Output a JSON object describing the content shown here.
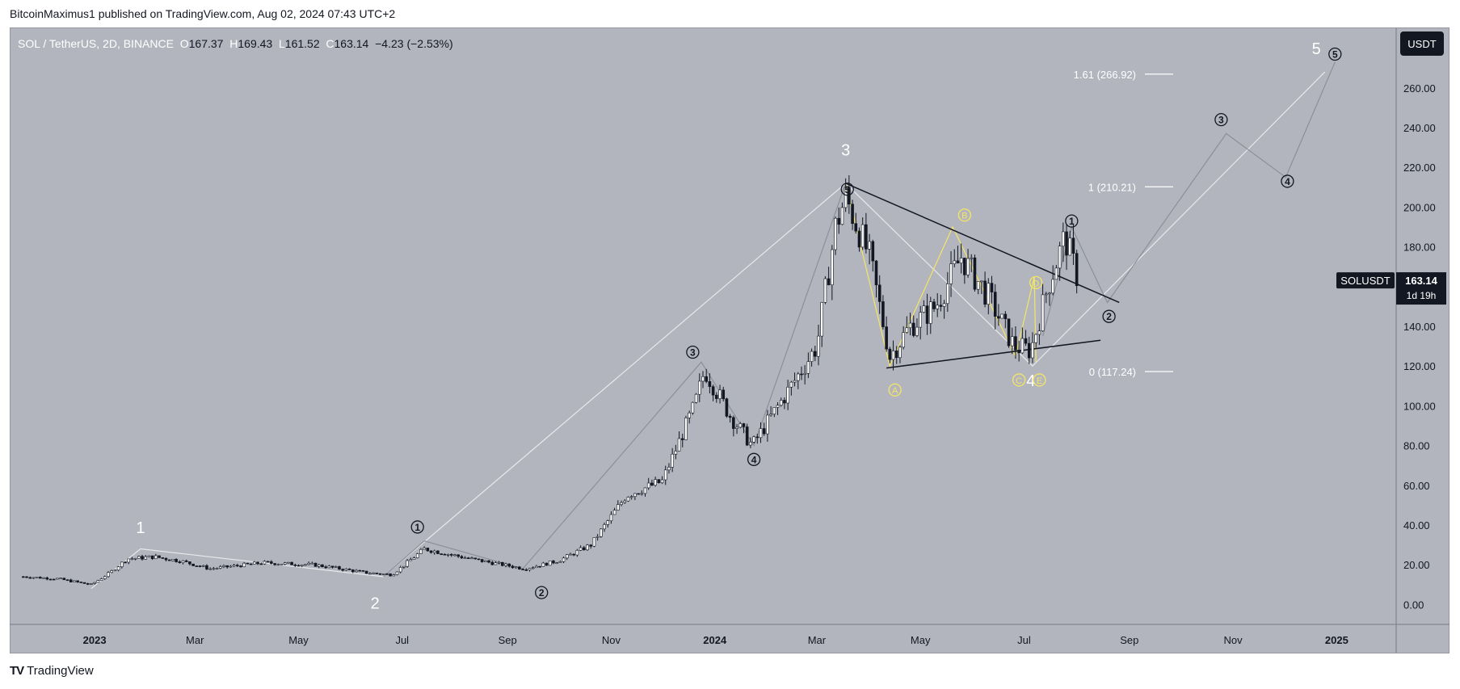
{
  "header": {
    "published": "BitcoinMaximus1 published on TradingView.com, Aug 02, 2024 07:43 UTC+2"
  },
  "symbol": {
    "title": "SOL / TetherUS, 2D, BINANCE",
    "o_label": "O",
    "o": "167.37",
    "h_label": "H",
    "h": "169.43",
    "l_label": "L",
    "l": "161.52",
    "c_label": "C",
    "c": "163.14",
    "change": "−4.23 (−2.53%)"
  },
  "currency_button": "USDT",
  "footer": {
    "brand": "TradingView",
    "logo": "TV"
  },
  "colors": {
    "background": "#b2b5be",
    "candle": "#131722",
    "wave_white": "#ffffff",
    "wave_yellow": "#f5e663",
    "wave_grey": "#8c8f99"
  },
  "chart_data": {
    "type": "line",
    "ylim": [
      -10,
      290
    ],
    "y_ticks": [
      "0.00",
      "20.00",
      "40.00",
      "60.00",
      "80.00",
      "100.00",
      "120.00",
      "140.00",
      "160.00",
      "180.00",
      "200.00",
      "220.00",
      "240.00",
      "260.00"
    ],
    "x_ticks": [
      "2023",
      "Mar",
      "May",
      "Jul",
      "Sep",
      "Nov",
      "2024",
      "Mar",
      "May",
      "Jul",
      "Sep",
      "Nov",
      "2025"
    ],
    "price_tag": {
      "symbol": "SOLUSDT",
      "price": "163.14",
      "countdown": "1d 19h",
      "value": 163.14
    },
    "fib_levels": [
      {
        "label": "1.61 (266.92)",
        "value": 266.92
      },
      {
        "label": "1 (210.21)",
        "value": 210.21
      },
      {
        "label": "0 (117.24)",
        "value": 117.24
      }
    ],
    "price_path": [
      {
        "d": "2022-11-20",
        "v": 14
      },
      {
        "d": "2022-12-10",
        "v": 13
      },
      {
        "d": "2022-12-30",
        "v": 10
      },
      {
        "d": "2023-01-10",
        "v": 16
      },
      {
        "d": "2023-01-20",
        "v": 23
      },
      {
        "d": "2023-02-05",
        "v": 24
      },
      {
        "d": "2023-02-20",
        "v": 22
      },
      {
        "d": "2023-03-10",
        "v": 18
      },
      {
        "d": "2023-04-10",
        "v": 21
      },
      {
        "d": "2023-05-10",
        "v": 20
      },
      {
        "d": "2023-06-10",
        "v": 16
      },
      {
        "d": "2023-06-25",
        "v": 15
      },
      {
        "d": "2023-07-14",
        "v": 28
      },
      {
        "d": "2023-08-10",
        "v": 23
      },
      {
        "d": "2023-09-11",
        "v": 18
      },
      {
        "d": "2023-10-01",
        "v": 22
      },
      {
        "d": "2023-10-20",
        "v": 30
      },
      {
        "d": "2023-11-10",
        "v": 55
      },
      {
        "d": "2023-12-01",
        "v": 62
      },
      {
        "d": "2023-12-20",
        "v": 100
      },
      {
        "d": "2023-12-26",
        "v": 118
      },
      {
        "d": "2024-01-10",
        "v": 95
      },
      {
        "d": "2024-01-23",
        "v": 80
      },
      {
        "d": "2024-02-15",
        "v": 110
      },
      {
        "d": "2024-03-01",
        "v": 130
      },
      {
        "d": "2024-03-12",
        "v": 190
      },
      {
        "d": "2024-03-18",
        "v": 205
      },
      {
        "d": "2024-04-01",
        "v": 175
      },
      {
        "d": "2024-04-13",
        "v": 125
      },
      {
        "d": "2024-04-25",
        "v": 140
      },
      {
        "d": "2024-05-10",
        "v": 150
      },
      {
        "d": "2024-05-25",
        "v": 175
      },
      {
        "d": "2024-06-10",
        "v": 155
      },
      {
        "d": "2024-06-25",
        "v": 130
      },
      {
        "d": "2024-07-05",
        "v": 128
      },
      {
        "d": "2024-07-15",
        "v": 160
      },
      {
        "d": "2024-07-25",
        "v": 185
      },
      {
        "d": "2024-08-02",
        "v": 163
      }
    ],
    "wave_labels": [
      {
        "text": "1",
        "d": "2023-01-28",
        "v": 36,
        "style": "white"
      },
      {
        "text": "2",
        "d": "2023-06-15",
        "v": -2,
        "style": "white"
      },
      {
        "text": "3",
        "d": "2024-03-18",
        "v": 226,
        "style": "white"
      },
      {
        "text": "4",
        "d": "2024-07-05",
        "v": 110,
        "style": "white"
      },
      {
        "text": "5",
        "d": "2024-12-20",
        "v": 277,
        "style": "white"
      },
      {
        "text": "1",
        "d": "2023-07-10",
        "v": 39,
        "style": "circle"
      },
      {
        "text": "2",
        "d": "2023-09-21",
        "v": 6,
        "style": "circle"
      },
      {
        "text": "3",
        "d": "2023-12-19",
        "v": 127,
        "style": "circle"
      },
      {
        "text": "4",
        "d": "2024-01-24",
        "v": 73,
        "style": "circle"
      },
      {
        "text": "5",
        "d": "2024-03-19",
        "v": 209,
        "style": "circle"
      },
      {
        "text": "1",
        "d": "2024-07-29",
        "v": 193,
        "style": "circle"
      },
      {
        "text": "2",
        "d": "2024-08-20",
        "v": 145,
        "style": "circle"
      },
      {
        "text": "3",
        "d": "2024-10-25",
        "v": 244,
        "style": "circle"
      },
      {
        "text": "4",
        "d": "2024-12-03",
        "v": 213,
        "style": "circle"
      },
      {
        "text": "5",
        "d": "2024-12-31",
        "v": 277,
        "style": "circle"
      },
      {
        "text": "A",
        "d": "2024-04-16",
        "v": 108,
        "style": "yellow"
      },
      {
        "text": "B",
        "d": "2024-05-27",
        "v": 196,
        "style": "yellow"
      },
      {
        "text": "C",
        "d": "2024-06-28",
        "v": 113,
        "style": "yellow"
      },
      {
        "text": "D",
        "d": "2024-07-08",
        "v": 162,
        "style": "yellow"
      },
      {
        "text": "E",
        "d": "2024-07-10",
        "v": 113,
        "style": "yellow"
      }
    ],
    "wave_lines": [
      {
        "style": "white",
        "points": [
          [
            "2022-12-30",
            8
          ],
          [
            "2023-01-28",
            28
          ],
          [
            "2023-06-20",
            14
          ],
          [
            "2024-03-18",
            212
          ],
          [
            "2024-07-06",
            120
          ],
          [
            "2024-12-25",
            268
          ]
        ]
      },
      {
        "style": "grey",
        "points": [
          [
            "2023-06-20",
            14
          ],
          [
            "2023-07-14",
            32
          ],
          [
            "2023-09-10",
            18
          ],
          [
            "2023-12-24",
            122
          ],
          [
            "2024-01-24",
            80
          ],
          [
            "2024-03-18",
            212
          ]
        ]
      },
      {
        "style": "yellow",
        "points": [
          [
            "2024-03-18",
            212
          ],
          [
            "2024-04-13",
            120
          ],
          [
            "2024-05-20",
            190
          ],
          [
            "2024-06-26",
            125
          ],
          [
            "2024-07-07",
            165
          ],
          [
            "2024-07-08",
            122
          ]
        ]
      },
      {
        "style": "grey",
        "points": [
          [
            "2024-07-12",
            135
          ],
          [
            "2024-07-29",
            190
          ],
          [
            "2024-08-19",
            152
          ],
          [
            "2024-10-28",
            237
          ],
          [
            "2024-12-02",
            215
          ],
          [
            "2024-12-31",
            273
          ]
        ]
      }
    ],
    "trend_lines": [
      {
        "from": [
          "2024-03-18",
          212
        ],
        "to": [
          "2024-08-26",
          152
        ]
      },
      {
        "from": [
          "2024-04-11",
          119
        ],
        "to": [
          "2024-08-15",
          133
        ]
      }
    ]
  }
}
